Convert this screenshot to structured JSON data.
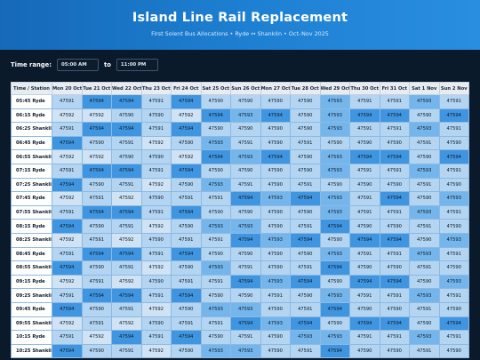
{
  "header": {
    "title": "Island Line Rail Replacement",
    "subtitle": "First Solent Bus Allocations • Ryde ↔ Shanklin • Oct–Nov 2025"
  },
  "controls": {
    "time_range_label": "Time range:",
    "from_value": "05:00 AM",
    "to_label": "to",
    "to_value": "11:00 PM"
  },
  "table": {
    "corner_header": "Time / Station",
    "columns": [
      "Mon 20 Oct",
      "Tue 21 Oct",
      "Wed 22 Oct",
      "Thu 23 Oct",
      "Fri 24 Oct",
      "Sat 25 Oct",
      "Sun 26 Oct",
      "Mon 27 Oct",
      "Tue 28 Oct",
      "Wed 29 Oct",
      "Thu 30 Oct",
      "Fri 31 Oct",
      "Sat 1 Nov",
      "Sun 2 Nov"
    ],
    "rows": [
      {
        "label": "05:45 Ryde",
        "cells": [
          "47591",
          "47594",
          "47594",
          "47591",
          "47594",
          "47590",
          "47590",
          "47590",
          "47590",
          "47593",
          "47591",
          "47591",
          "47593",
          "47591"
        ]
      },
      {
        "label": "06:15 Ryde",
        "cells": [
          "47592",
          "47592",
          "47590",
          "47590",
          "47592",
          "47594",
          "47593",
          "47594",
          "47590",
          "47593",
          "47594",
          "47594",
          "47590",
          "47594"
        ]
      },
      {
        "label": "06:25 Shanklin",
        "cells": [
          "47591",
          "47594",
          "47594",
          "47591",
          "47594",
          "47590",
          "47590",
          "47590",
          "47590",
          "47593",
          "47591",
          "47591",
          "47593",
          "47591"
        ]
      },
      {
        "label": "06:45 Ryde",
        "cells": [
          "47594",
          "47590",
          "47591",
          "47592",
          "47590",
          "47593",
          "47591",
          "47590",
          "47591",
          "47590",
          "47590",
          "47590",
          "47591",
          "47590"
        ]
      },
      {
        "label": "06:55 Shanklin",
        "cells": [
          "47592",
          "47592",
          "47590",
          "47590",
          "47592",
          "47594",
          "47593",
          "47594",
          "47590",
          "47593",
          "47594",
          "47594",
          "47590",
          "47594"
        ]
      },
      {
        "label": "07:15 Ryde",
        "cells": [
          "47591",
          "47594",
          "47594",
          "47591",
          "47594",
          "47590",
          "47590",
          "47590",
          "47590",
          "47593",
          "47591",
          "47591",
          "47593",
          "47591"
        ]
      },
      {
        "label": "07:25 Shanklin",
        "cells": [
          "47594",
          "47590",
          "47591",
          "47592",
          "47590",
          "47593",
          "47591",
          "47590",
          "47591",
          "47590",
          "47590",
          "47590",
          "47591",
          "47590"
        ]
      },
      {
        "label": "07:45 Ryde",
        "cells": [
          "47592",
          "47591",
          "47592",
          "47590",
          "47591",
          "47591",
          "47594",
          "47593",
          "47594",
          "47593",
          "47591",
          "47594",
          "47590",
          "47593"
        ]
      },
      {
        "label": "07:55 Shanklin",
        "cells": [
          "47591",
          "47594",
          "47594",
          "47591",
          "47594",
          "47590",
          "47590",
          "47590",
          "47590",
          "47593",
          "47591",
          "47591",
          "47593",
          "47591"
        ]
      },
      {
        "label": "08:15 Ryde",
        "cells": [
          "47594",
          "47590",
          "47591",
          "47592",
          "47590",
          "47593",
          "47593",
          "47590",
          "47591",
          "47594",
          "47590",
          "47590",
          "47591",
          "47590"
        ]
      },
      {
        "label": "08:25 Shanklin",
        "cells": [
          "47592",
          "47591",
          "47592",
          "47590",
          "47591",
          "47591",
          "47594",
          "47593",
          "47594",
          "47590",
          "47594",
          "47594",
          "47590",
          "47593"
        ]
      },
      {
        "label": "08:45 Ryde",
        "cells": [
          "47591",
          "47594",
          "47594",
          "47591",
          "47594",
          "47590",
          "47590",
          "47590",
          "47590",
          "47593",
          "47591",
          "47591",
          "47593",
          "47591"
        ]
      },
      {
        "label": "08:55 Shanklin",
        "cells": [
          "47594",
          "47590",
          "47591",
          "47592",
          "47590",
          "47593",
          "47591",
          "47590",
          "47591",
          "47594",
          "47590",
          "47590",
          "47591",
          "47590"
        ]
      },
      {
        "label": "09:15 Ryde",
        "cells": [
          "47592",
          "47591",
          "47592",
          "47590",
          "47591",
          "47591",
          "47594",
          "47593",
          "47594",
          "47590",
          "47594",
          "47594",
          "47590",
          "47593"
        ]
      },
      {
        "label": "09:25 Shanklin",
        "cells": [
          "47591",
          "47594",
          "47594",
          "47591",
          "47594",
          "47590",
          "47590",
          "47591",
          "47590",
          "47593",
          "47591",
          "47591",
          "47593",
          "47591"
        ]
      },
      {
        "label": "09:45 Ryde",
        "cells": [
          "47594",
          "47590",
          "47591",
          "47592",
          "47590",
          "47593",
          "47593",
          "47590",
          "47591",
          "47594",
          "47590",
          "47590",
          "47591",
          "47590"
        ]
      },
      {
        "label": "09:55 Shanklin",
        "cells": [
          "47592",
          "47591",
          "47592",
          "47590",
          "47591",
          "47591",
          "47594",
          "47593",
          "47594",
          "47590",
          "47594",
          "47594",
          "47590",
          "47594"
        ]
      },
      {
        "label": "10:15 Ryde",
        "cells": [
          "47591",
          "47592",
          "47594",
          "47591",
          "47594",
          "47590",
          "47591",
          "47590",
          "47593",
          "47593",
          "47591",
          "47591",
          "47593",
          "47591"
        ]
      },
      {
        "label": "10:25 Shanklin",
        "cells": [
          "47594",
          "47590",
          "47591",
          "47592",
          "47590",
          "47593",
          "47593",
          "47590",
          "47591",
          "47594",
          "47590",
          "47590",
          "47591",
          "47590"
        ]
      }
    ]
  },
  "colors": {
    "header_gradient_start": "#1669b8",
    "header_gradient_end": "#2a8ee0",
    "page_background": "#0b1a2b",
    "cell_47590": "#b3d5f2",
    "cell_47591": "#b3d5f2",
    "cell_47592": "#cfe3f5",
    "cell_47593": "#74b6ec",
    "cell_47594": "#3f95e0"
  }
}
